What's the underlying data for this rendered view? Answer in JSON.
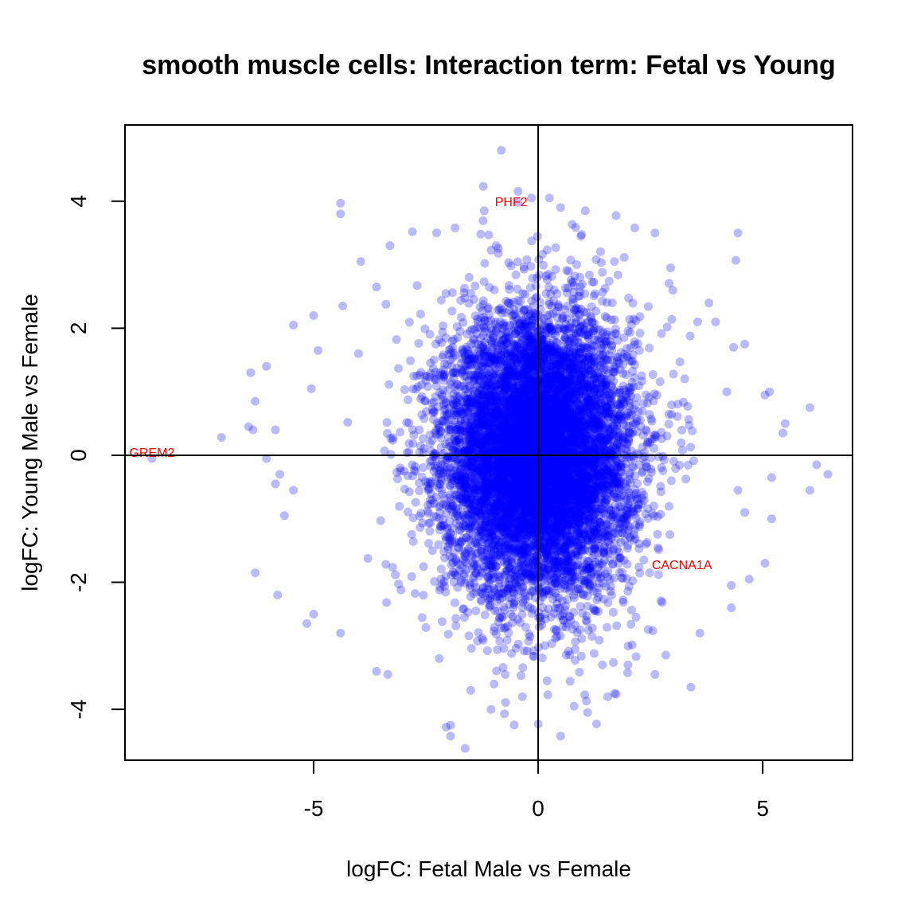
{
  "chart_data": {
    "type": "scatter",
    "title": "smooth muscle cells: Interaction term: Fetal vs Young",
    "xlabel": "logFC: Fetal Male vs Female",
    "ylabel": "logFC: Young Male vs Female",
    "xlim": [
      -9.2,
      7.0
    ],
    "ylim": [
      -4.8,
      5.2
    ],
    "xticks": [
      -5,
      0,
      5
    ],
    "xtick_labels": [
      "-5",
      "0",
      "5"
    ],
    "yticks": [
      -4,
      -2,
      0,
      2,
      4
    ],
    "ytick_labels": [
      "-4",
      "-2",
      "0",
      "2",
      "4"
    ],
    "reference_lines": {
      "x": 0,
      "y": 0
    },
    "grid": false,
    "point_color": "#0000ff",
    "point_alpha": 0.27,
    "label_color": "#ff0000",
    "labeled_points": [
      {
        "label": "PHF2",
        "x": -0.6,
        "y": 4.0
      },
      {
        "label": "GREM2",
        "x": -8.6,
        "y": 0.05
      },
      {
        "label": "CACNA1A",
        "x": 3.2,
        "y": -1.72
      }
    ],
    "points": [
      {
        "x": -0.82,
        "y": 4.8
      },
      {
        "x": -4.4,
        "y": 3.97
      },
      {
        "x": -4.4,
        "y": 3.8
      },
      {
        "x": -0.15,
        "y": 4.05
      },
      {
        "x": 0.25,
        "y": 4.05
      },
      {
        "x": -0.45,
        "y": 3.98
      },
      {
        "x": 0.5,
        "y": 3.9
      },
      {
        "x": -1.2,
        "y": 3.85
      },
      {
        "x": 1.05,
        "y": 3.85
      },
      {
        "x": -1.85,
        "y": 3.58
      },
      {
        "x": 2.15,
        "y": 3.58
      },
      {
        "x": 2.6,
        "y": 3.5
      },
      {
        "x": 4.45,
        "y": 3.5
      },
      {
        "x": -2.8,
        "y": 3.52
      },
      {
        "x": -1.1,
        "y": 3.47
      },
      {
        "x": 0.95,
        "y": 3.45
      },
      {
        "x": -3.3,
        "y": 3.3
      },
      {
        "x": 4.4,
        "y": 3.07
      },
      {
        "x": -3.95,
        "y": 3.05
      },
      {
        "x": 2.95,
        "y": 2.95
      },
      {
        "x": 3.0,
        "y": 2.6
      },
      {
        "x": -3.6,
        "y": 2.65
      },
      {
        "x": 3.55,
        "y": 2.1
      },
      {
        "x": 3.95,
        "y": 2.1
      },
      {
        "x": -5.0,
        "y": 2.2
      },
      {
        "x": -5.45,
        "y": 2.05
      },
      {
        "x": -4.35,
        "y": 2.35
      },
      {
        "x": 4.35,
        "y": 1.7
      },
      {
        "x": 4.6,
        "y": 1.75
      },
      {
        "x": -4.0,
        "y": 1.6
      },
      {
        "x": -4.9,
        "y": 1.65
      },
      {
        "x": 4.2,
        "y": 1.0
      },
      {
        "x": 5.05,
        "y": 0.95
      },
      {
        "x": 5.15,
        "y": 1.0
      },
      {
        "x": -6.4,
        "y": 1.3
      },
      {
        "x": -6.05,
        "y": 1.4
      },
      {
        "x": -5.05,
        "y": 1.05
      },
      {
        "x": -6.3,
        "y": 0.85
      },
      {
        "x": 6.05,
        "y": 0.75
      },
      {
        "x": 5.5,
        "y": 0.5
      },
      {
        "x": 5.45,
        "y": 0.35
      },
      {
        "x": -5.85,
        "y": 0.4
      },
      {
        "x": -6.45,
        "y": 0.45
      },
      {
        "x": -6.35,
        "y": 0.4
      },
      {
        "x": -7.05,
        "y": 0.28
      },
      {
        "x": -8.6,
        "y": -0.05
      },
      {
        "x": -6.05,
        "y": -0.05
      },
      {
        "x": -5.85,
        "y": -0.45
      },
      {
        "x": -5.75,
        "y": -0.3
      },
      {
        "x": -5.45,
        "y": -0.55
      },
      {
        "x": 6.2,
        "y": -0.15
      },
      {
        "x": 6.45,
        "y": -0.3
      },
      {
        "x": 5.2,
        "y": -0.35
      },
      {
        "x": 6.05,
        "y": -0.55
      },
      {
        "x": 4.45,
        "y": -0.55
      },
      {
        "x": 5.2,
        "y": -1.0
      },
      {
        "x": 4.6,
        "y": -0.9
      },
      {
        "x": -5.65,
        "y": -0.95
      },
      {
        "x": 5.05,
        "y": -1.7
      },
      {
        "x": -6.3,
        "y": -1.85
      },
      {
        "x": 4.7,
        "y": -1.95
      },
      {
        "x": -5.8,
        "y": -2.2
      },
      {
        "x": 4.3,
        "y": -2.05
      },
      {
        "x": 4.3,
        "y": -2.4
      },
      {
        "x": -5.0,
        "y": -2.5
      },
      {
        "x": -5.15,
        "y": -2.65
      },
      {
        "x": -4.4,
        "y": -2.8
      },
      {
        "x": 3.6,
        "y": -2.8
      },
      {
        "x": -3.6,
        "y": -3.4
      },
      {
        "x": -3.35,
        "y": -3.45
      },
      {
        "x": 3.4,
        "y": -3.65
      },
      {
        "x": -2.2,
        "y": -3.2
      },
      {
        "x": -1.5,
        "y": -3.7
      },
      {
        "x": 1.55,
        "y": -3.8
      },
      {
        "x": 1.7,
        "y": -3.75
      },
      {
        "x": -1.05,
        "y": -4.0
      },
      {
        "x": -0.75,
        "y": -4.07
      },
      {
        "x": 1.1,
        "y": -4.05
      },
      {
        "x": 0.0,
        "y": -4.23
      },
      {
        "x": -1.95,
        "y": -4.25
      },
      {
        "x": -2.05,
        "y": -4.28
      },
      {
        "x": 1.3,
        "y": -4.23
      },
      {
        "x": -1.95,
        "y": -4.42
      },
      {
        "x": 0.5,
        "y": -4.42
      },
      {
        "x": 0.8,
        "y": -3.95
      },
      {
        "x": -0.35,
        "y": -3.8
      },
      {
        "x": 0.2,
        "y": -3.55
      },
      {
        "x": 2.6,
        "y": -3.45
      },
      {
        "x": 2.0,
        "y": -3.3
      }
    ],
    "cluster": {
      "center_x": 0.0,
      "center_y": 0.0,
      "sd_x": 1.05,
      "sd_y": 1.1,
      "count": 9000
    }
  }
}
